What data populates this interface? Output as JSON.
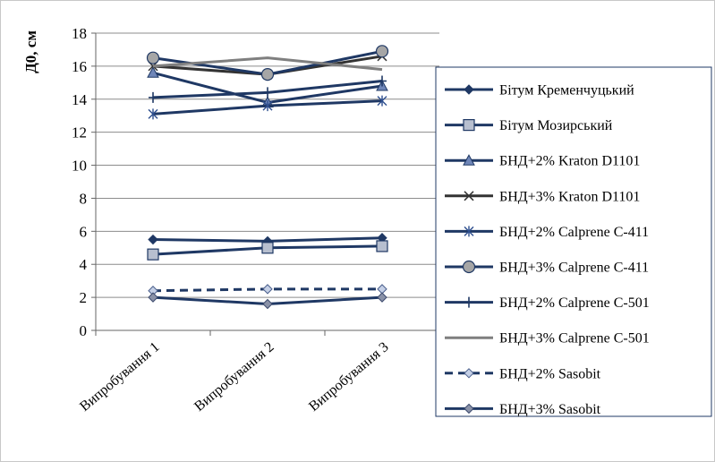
{
  "chart_data": {
    "type": "line",
    "ylabel": "Д0, см",
    "xlabel": "",
    "title": "",
    "ylim": [
      0,
      18
    ],
    "ytick_step": 2,
    "yticks": [
      "0",
      "2",
      "4",
      "6",
      "8",
      "10",
      "12",
      "14",
      "16",
      "18"
    ],
    "categories": [
      "Випробування 1",
      "Випробування 2",
      "Випробування 3"
    ],
    "grid": "horizontal",
    "legend_position": "right",
    "series": [
      {
        "name": "Бітум Кременчуцький",
        "values": [
          5.5,
          5.4,
          5.6
        ],
        "color": "#1f3864",
        "marker": "diamond",
        "dash": false
      },
      {
        "name": "Бітум Мозирський",
        "values": [
          4.6,
          5.0,
          5.1
        ],
        "color": "#1f3864",
        "marker": "square",
        "dash": false
      },
      {
        "name": "БНД+2% Kraton D1101",
        "values": [
          15.6,
          13.8,
          14.8
        ],
        "color": "#1f3864",
        "marker": "triangle",
        "dash": false
      },
      {
        "name": "БНД+3% Kraton D1101",
        "values": [
          16.0,
          15.5,
          16.6
        ],
        "color": "#333333",
        "marker": "x",
        "dash": false
      },
      {
        "name": "БНД+2% Calprene C-411",
        "values": [
          13.1,
          13.6,
          13.9
        ],
        "color": "#1f3864",
        "marker": "star",
        "dash": false
      },
      {
        "name": "БНД+3% Calprene C-411",
        "values": [
          16.5,
          15.5,
          16.9
        ],
        "color": "#1f3864",
        "marker": "circle",
        "dash": false
      },
      {
        "name": "БНД+2% Calprene C-501",
        "values": [
          14.1,
          14.4,
          15.1
        ],
        "color": "#1f3864",
        "marker": "plus",
        "dash": false
      },
      {
        "name": "БНД+3% Calprene C-501",
        "values": [
          16.0,
          16.5,
          15.8
        ],
        "color": "#7f7f7f",
        "marker": "none",
        "dash": false
      },
      {
        "name": "БНД+2% Sasobit",
        "values": [
          2.4,
          2.5,
          2.5
        ],
        "color": "#1f3864",
        "marker": "diamond-light",
        "dash": true
      },
      {
        "name": "БНД+3% Sasobit",
        "values": [
          2.0,
          1.6,
          2.0
        ],
        "color": "#1f3864",
        "marker": "diamond-gray",
        "dash": false
      }
    ]
  }
}
